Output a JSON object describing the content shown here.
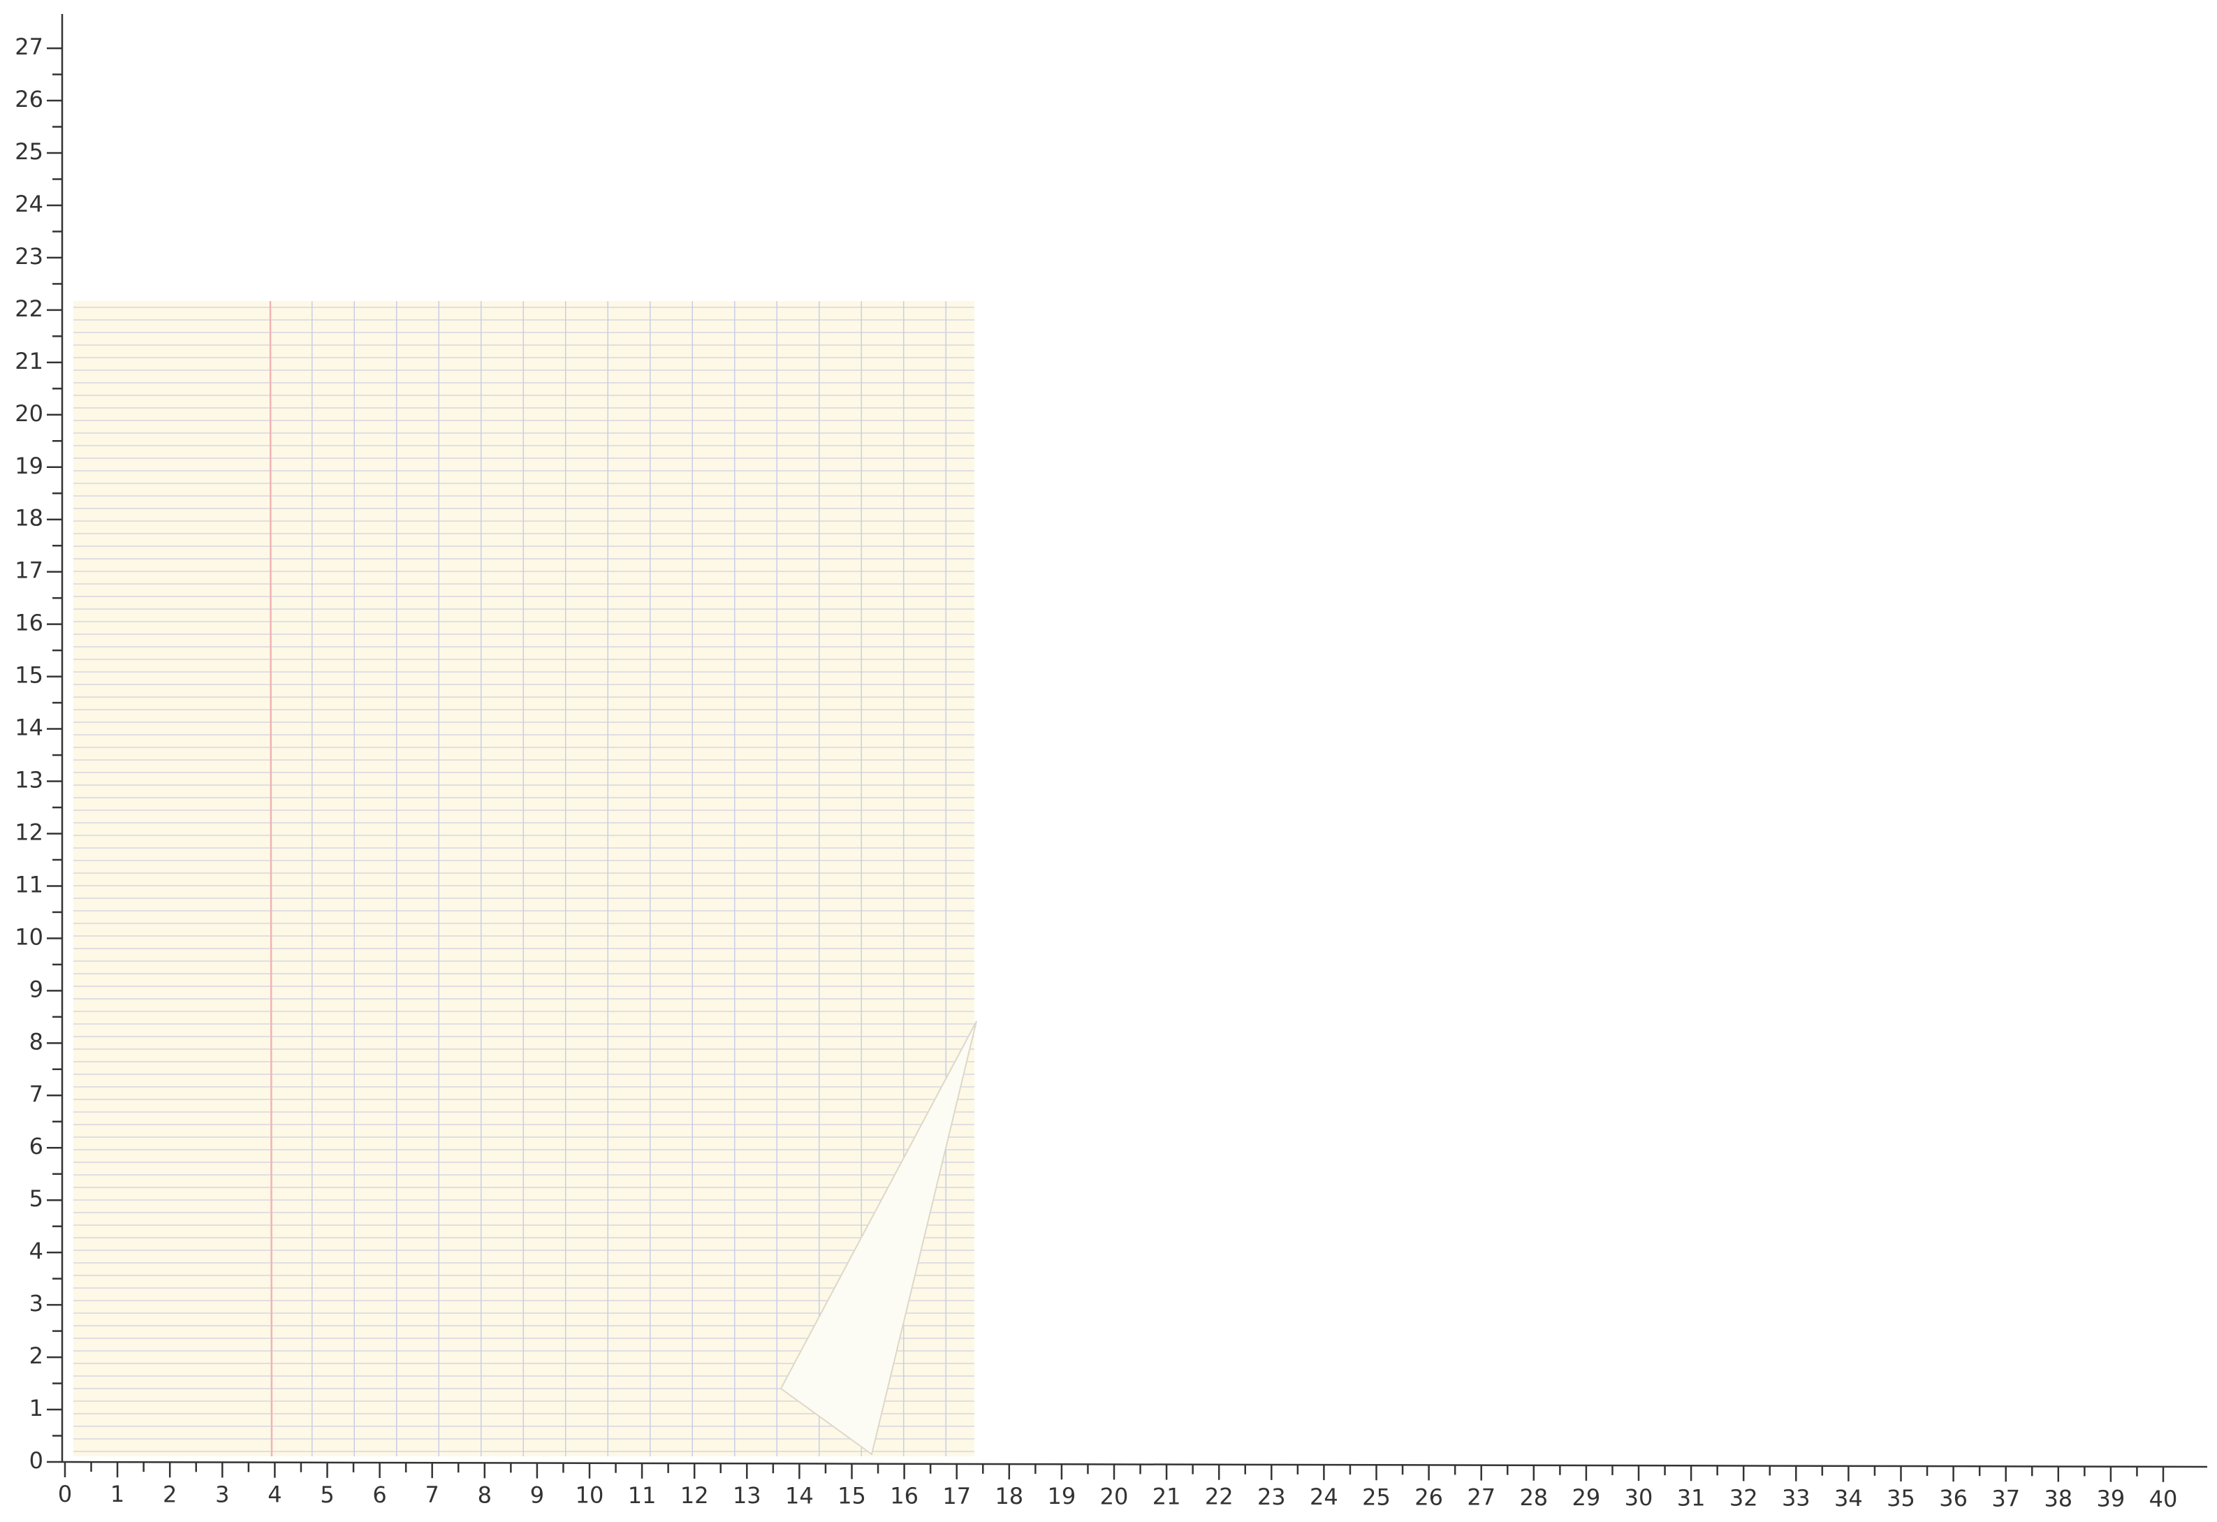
{
  "x_ruler": {
    "labels": [
      0,
      1,
      2,
      3,
      4,
      5,
      6,
      7,
      8,
      9,
      10,
      11,
      12,
      13,
      14,
      15,
      16,
      17,
      18,
      19,
      20,
      21,
      22,
      23,
      24,
      25,
      26,
      27,
      28,
      29,
      30,
      31,
      32,
      33,
      34,
      35,
      36,
      37,
      38,
      39,
      40
    ]
  },
  "y_ruler": {
    "labels": [
      0,
      1,
      2,
      3,
      4,
      5,
      6,
      7,
      8,
      9,
      10,
      11,
      12,
      13,
      14,
      15,
      16,
      17,
      18,
      19,
      20,
      21,
      22,
      23,
      24,
      25,
      26,
      27
    ]
  }
}
